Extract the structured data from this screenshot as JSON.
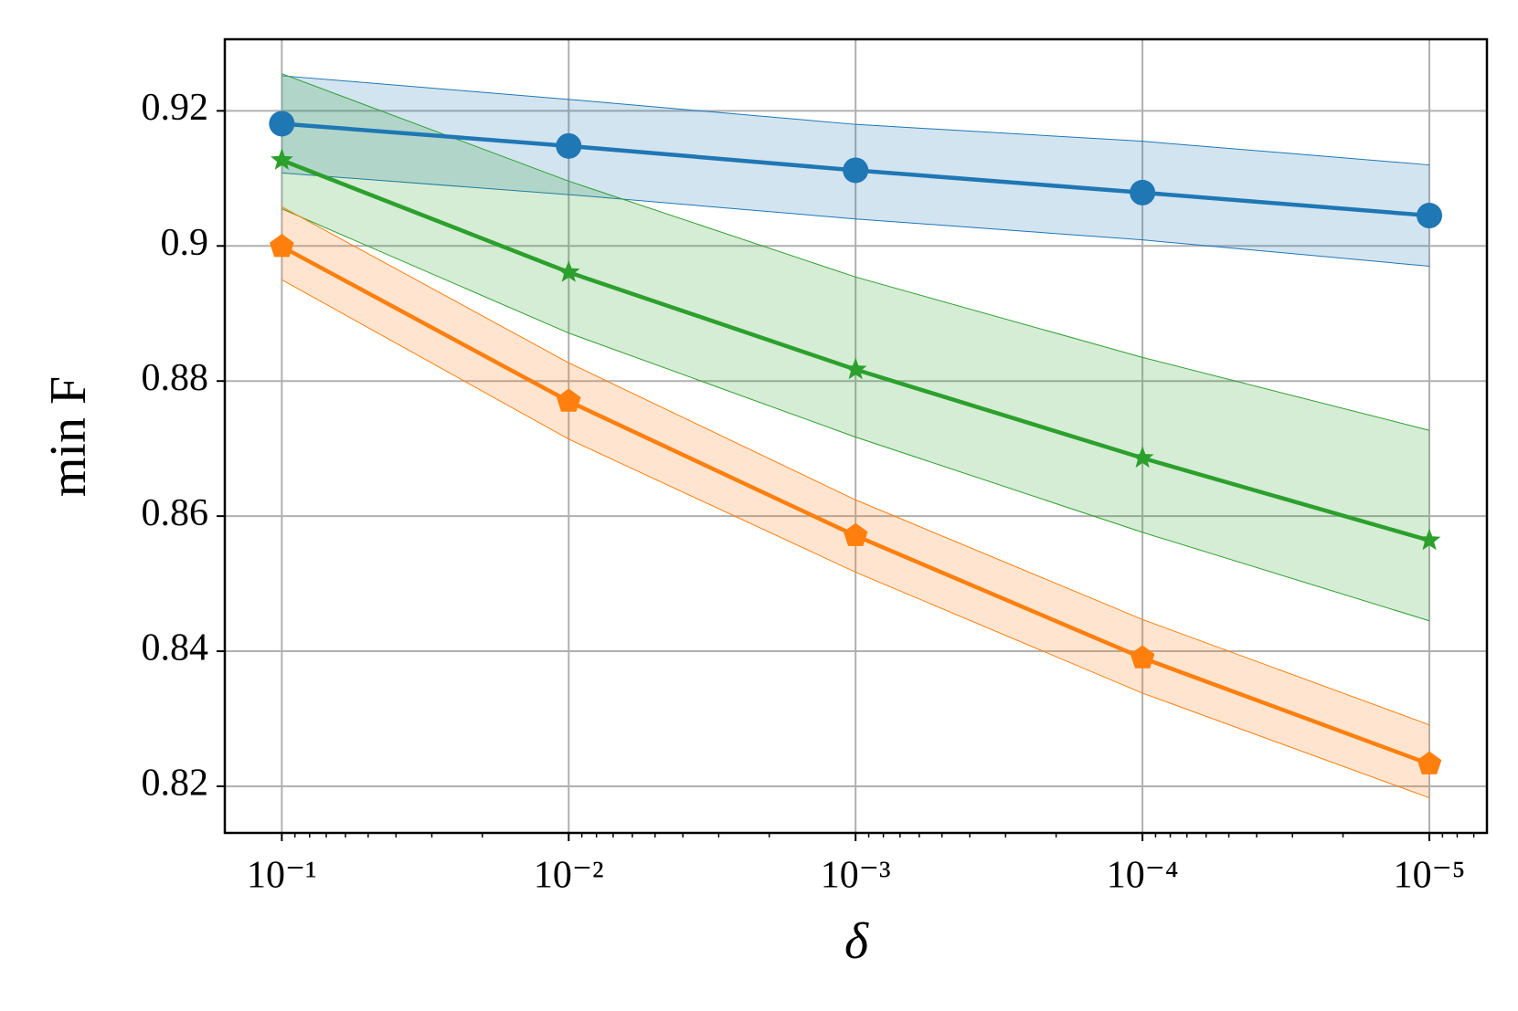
{
  "chart_data": {
    "type": "line",
    "xlabel": "δ",
    "ylabel": "min  F",
    "x": [
      0.1,
      0.01,
      0.001,
      0.0001,
      1e-05
    ],
    "xscale": "log",
    "grid": true,
    "xlim": [
      0.158,
      6.3e-06
    ],
    "ylim": [
      0.8131,
      0.9306
    ],
    "xticks": [
      {
        "value": 0.1,
        "label": "10⁻¹"
      },
      {
        "value": 0.01,
        "label": "10⁻²"
      },
      {
        "value": 0.001,
        "label": "10⁻³"
      },
      {
        "value": 0.0001,
        "label": "10⁻⁴"
      },
      {
        "value": 1e-05,
        "label": "10⁻⁵"
      }
    ],
    "xminorticks": [
      0.09,
      0.08,
      0.07,
      0.06,
      0.05,
      0.04,
      0.03,
      0.02,
      0.009,
      0.008,
      0.007,
      0.006,
      0.005,
      0.004,
      0.003,
      0.002,
      0.0009,
      0.0008,
      0.0007,
      0.0006,
      0.0005,
      0.0004,
      0.0003,
      0.0002,
      9e-05,
      8e-05,
      7e-05,
      6e-05,
      5e-05,
      4e-05,
      3e-05,
      2e-05,
      9e-06,
      8e-06,
      7e-06
    ],
    "yticks": [
      0.82,
      0.84,
      0.86,
      0.88,
      0.9,
      0.92
    ],
    "series": [
      {
        "color": "#1f77b4",
        "marker": "circle",
        "values": [
          0.9181,
          0.9148,
          0.9112,
          0.9079,
          0.9045
        ],
        "upper": [
          0.9252,
          0.9217,
          0.918,
          0.9155,
          0.912
        ],
        "lower": [
          0.9108,
          0.9076,
          0.904,
          0.9009,
          0.897
        ]
      },
      {
        "color": "#2ca02c",
        "marker": "star",
        "values": [
          0.9127,
          0.8961,
          0.8817,
          0.8686,
          0.8564
        ],
        "upper": [
          0.9255,
          0.9096,
          0.8954,
          0.8835,
          0.8727
        ],
        "lower": [
          0.9055,
          0.8871,
          0.8717,
          0.8576,
          0.8445
        ]
      },
      {
        "color": "#ff7f0e",
        "marker": "pentagon",
        "values": [
          0.8999,
          0.877,
          0.8571,
          0.839,
          0.8233
        ],
        "upper": [
          0.9058,
          0.8827,
          0.8624,
          0.8447,
          0.8291
        ],
        "lower": [
          0.895,
          0.8714,
          0.8517,
          0.8338,
          0.8183
        ]
      }
    ]
  }
}
